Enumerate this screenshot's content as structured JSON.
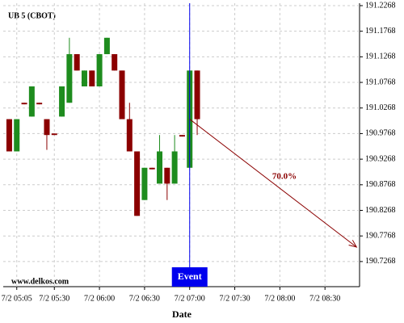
{
  "chart_data": {
    "type": "candlestick",
    "title": "UB 5 (CBOT)",
    "watermark": "www.delkos.com",
    "x_label": "Date",
    "x": [
      "7/2 05:00",
      "7/2 05:05",
      "7/2 05:10",
      "7/2 05:15",
      "7/2 05:20",
      "7/2 05:25",
      "7/2 05:30",
      "7/2 05:35",
      "7/2 05:40",
      "7/2 05:45",
      "7/2 05:50",
      "7/2 05:55",
      "7/2 06:00",
      "7/2 06:05",
      "7/2 06:10",
      "7/2 06:15",
      "7/2 06:20",
      "7/2 06:25",
      "7/2 06:30",
      "7/2 06:35",
      "7/2 06:40",
      "7/2 06:45",
      "7/2 06:50",
      "7/2 06:55",
      "7/2 07:00",
      "7/2 07:05"
    ],
    "open": [
      191.005,
      190.942,
      191.037,
      191.01,
      191.037,
      191.005,
      190.977,
      191.01,
      191.037,
      191.132,
      191.069,
      191.1,
      191.069,
      191.132,
      191.132,
      191.1,
      191.005,
      190.942,
      190.847,
      190.91,
      190.879,
      190.91,
      190.879,
      190.974,
      190.91,
      191.1
    ],
    "high": [
      191.005,
      191.005,
      191.037,
      191.069,
      191.037,
      191.005,
      190.977,
      191.069,
      191.164,
      191.132,
      191.1,
      191.1,
      191.132,
      191.164,
      191.132,
      191.1,
      191.037,
      190.942,
      190.91,
      190.91,
      190.974,
      190.91,
      190.974,
      190.974,
      191.1,
      191.1
    ],
    "low": [
      190.942,
      190.942,
      191.034,
      191.01,
      191.034,
      190.945,
      190.974,
      191.01,
      191.037,
      191.1,
      191.069,
      191.069,
      191.069,
      191.132,
      191.1,
      191.005,
      190.942,
      190.816,
      190.847,
      190.907,
      190.879,
      190.847,
      190.879,
      190.971,
      190.91,
      190.974
    ],
    "close": [
      190.942,
      191.005,
      191.034,
      191.069,
      191.034,
      190.974,
      190.974,
      191.069,
      191.132,
      191.1,
      191.1,
      191.069,
      191.132,
      191.164,
      191.1,
      191.005,
      190.942,
      190.816,
      190.91,
      190.907,
      190.942,
      190.879,
      190.942,
      190.971,
      191.1,
      191.005
    ],
    "up_color": "#1e8c1e",
    "down_color": "#8b0000",
    "xlim": [
      "7/2 04:56",
      "7/2 08:53"
    ],
    "xticks": [
      "7/2 05:05",
      "7/2 05:30",
      "7/2 06:00",
      "7/2 06:30",
      "7/2 07:00",
      "7/2 07:30",
      "7/2 08:00",
      "7/2 08:30"
    ],
    "ylim": [
      190.6777,
      191.2315
    ],
    "yticks": [
      191.2268,
      191.1768,
      191.1268,
      191.0768,
      191.0268,
      190.9768,
      190.9268,
      190.8768,
      190.8268,
      190.7768,
      190.7268
    ],
    "grid": true,
    "event": {
      "label": "Event",
      "x": "7/2 07:00",
      "color": "#0000ee"
    },
    "arrow": {
      "label": "70.0%",
      "x": [
        "7/2 07:00",
        "7/2 08:51"
      ],
      "y": [
        191.005,
        190.755
      ],
      "color": "#8b0000"
    }
  }
}
